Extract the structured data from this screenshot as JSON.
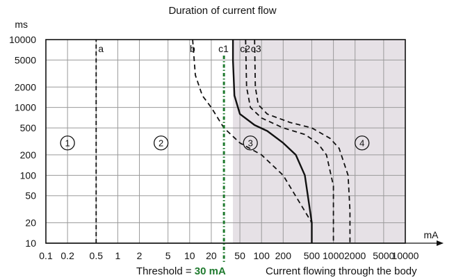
{
  "chart_data": {
    "type": "line",
    "title": "Duration of current flow",
    "xlabel": "Current flowing through the body",
    "xunit": "mA",
    "yunit": "ms",
    "xscale": "log",
    "yscale": "log",
    "xlim": [
      0.1,
      10000
    ],
    "ylim": [
      10,
      10000
    ],
    "grid": true,
    "x_ticks": [
      0.1,
      0.2,
      0.5,
      1,
      2,
      5,
      10,
      20,
      50,
      100,
      200,
      500,
      1000,
      2000,
      5000,
      10000
    ],
    "x_tick_labels": [
      "0.1",
      "0.2",
      "0.5",
      "1",
      "2",
      "5",
      "10",
      "20",
      "50",
      "100",
      "200",
      "500",
      "1000",
      "2000",
      "5000",
      "10000"
    ],
    "y_ticks": [
      10,
      20,
      50,
      100,
      200,
      500,
      1000,
      2000,
      5000,
      10000
    ],
    "y_tick_labels": [
      "10",
      "20",
      "50",
      "100",
      "200",
      "500",
      "1000",
      "2000",
      "5000",
      "10000"
    ],
    "threshold": {
      "label_prefix": "Threshold = ",
      "label_value": "30 mA",
      "x": 30,
      "color": "#1f7a2e"
    },
    "zone_shade_color": "#e6e1e6",
    "zones": [
      {
        "label": "1",
        "x": 0.2,
        "y": 300
      },
      {
        "label": "2",
        "x": 4,
        "y": 300
      },
      {
        "label": "3",
        "x": 70,
        "y": 300
      },
      {
        "label": "4",
        "x": 2500,
        "y": 300
      }
    ],
    "series": [
      {
        "name": "a",
        "style": "dashed",
        "label_x": 0.5,
        "points": [
          [
            0.5,
            10
          ],
          [
            0.5,
            10000
          ]
        ]
      },
      {
        "name": "b",
        "style": "dashed",
        "label_x": 12,
        "points": [
          [
            11,
            10000
          ],
          [
            12,
            3000
          ],
          [
            15,
            1500
          ],
          [
            20,
            1000
          ],
          [
            30,
            500
          ],
          [
            50,
            300
          ],
          [
            100,
            200
          ],
          [
            200,
            100
          ],
          [
            500,
            20
          ]
        ]
      },
      {
        "name": "c1",
        "style": "solid",
        "label_x": 30,
        "points": [
          [
            40,
            10000
          ],
          [
            40,
            5000
          ],
          [
            42,
            1500
          ],
          [
            50,
            800
          ],
          [
            80,
            550
          ],
          [
            120,
            450
          ],
          [
            200,
            300
          ],
          [
            300,
            200
          ],
          [
            400,
            100
          ],
          [
            500,
            20
          ],
          [
            500,
            10
          ]
        ]
      },
      {
        "name": "c2",
        "style": "dashed",
        "label_x": 60,
        "points": [
          [
            60,
            10000
          ],
          [
            62,
            2000
          ],
          [
            70,
            1000
          ],
          [
            100,
            700
          ],
          [
            200,
            500
          ],
          [
            400,
            400
          ],
          [
            600,
            300
          ],
          [
            800,
            200
          ],
          [
            1000,
            70
          ],
          [
            1000,
            10
          ]
        ]
      },
      {
        "name": "c3",
        "style": "dashed",
        "label_x": 85,
        "points": [
          [
            80,
            10000
          ],
          [
            82,
            2000
          ],
          [
            90,
            1100
          ],
          [
            120,
            800
          ],
          [
            250,
            600
          ],
          [
            500,
            500
          ],
          [
            900,
            350
          ],
          [
            1200,
            250
          ],
          [
            1600,
            100
          ],
          [
            1700,
            30
          ],
          [
            1700,
            10
          ]
        ]
      }
    ]
  }
}
